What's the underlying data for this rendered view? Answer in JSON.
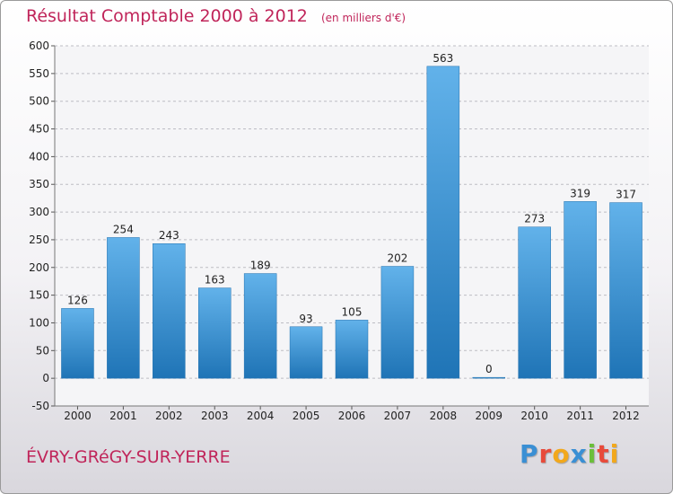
{
  "header": {
    "title": "Résultat Comptable 2000 à 2012",
    "subtitle": "(en milliers d'€)"
  },
  "footer": {
    "location": "ÉVRY-GRéGY-SUR-YERRE",
    "logo_letters": [
      {
        "char": "P",
        "color": "#3a8fd4"
      },
      {
        "char": "r",
        "color": "#e84a3a"
      },
      {
        "char": "o",
        "color": "#f2a81c"
      },
      {
        "char": "x",
        "color": "#3a8fd4"
      },
      {
        "char": "i",
        "color": "#6bbf3a"
      },
      {
        "char": "t",
        "color": "#e84a3a"
      },
      {
        "char": "i",
        "color": "#f2a81c"
      }
    ]
  },
  "colors": {
    "bar_light": "#62b2ea",
    "bar_dark": "#1f74b6",
    "accent": "#c0255a"
  },
  "chart_data": {
    "type": "bar",
    "categories": [
      "2000",
      "2001",
      "2002",
      "2003",
      "2004",
      "2005",
      "2006",
      "2007",
      "2008",
      "2009",
      "2010",
      "2011",
      "2012"
    ],
    "values": [
      126,
      254,
      243,
      163,
      189,
      93,
      105,
      202,
      563,
      0,
      273,
      319,
      317
    ],
    "ylim": [
      -50,
      600
    ],
    "yticks": [
      -50,
      0,
      50,
      100,
      150,
      200,
      250,
      300,
      350,
      400,
      450,
      500,
      550,
      600
    ],
    "grid": true,
    "title": "Résultat Comptable 2000 à 2012",
    "subtitle": "(en milliers d'€)",
    "xlabel": "",
    "ylabel": ""
  }
}
